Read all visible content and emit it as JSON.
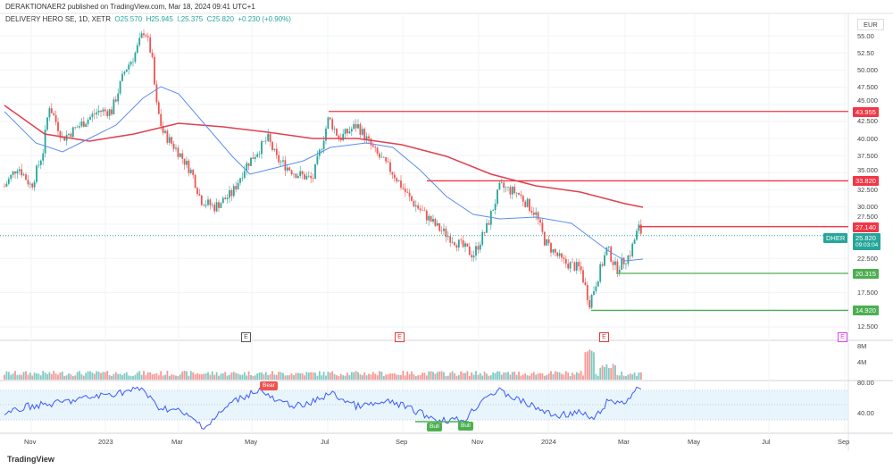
{
  "publisher_line": "DERAKTIONAER2 published on TradingView.com, Mar 18, 2024 09:41 UTC+1",
  "symbol": {
    "name": "DELIVERY HERO SE, 1D, XETR",
    "open": "O25.570",
    "high": "H25.945",
    "low": "L25.375",
    "close": "C25.820",
    "change": "+0.230 (+0.90%)",
    "ticker": "DHER",
    "price": "25.820",
    "countdown": "09:03:04"
  },
  "currency": "EUR",
  "price_ticks": [
    "55.00",
    "52.50",
    "50.000",
    "47.500",
    "45.000",
    "42.500",
    "40.000",
    "37.500",
    "35.000",
    "32.500",
    "30.000",
    "27.500",
    "22.500",
    "17.500",
    "12.500"
  ],
  "levels": [
    {
      "value": "43.955",
      "color": "#f23645"
    },
    {
      "value": "33.820",
      "color": "#f23645"
    },
    {
      "value": "27.140",
      "color": "#f23645"
    },
    {
      "value": "20.315",
      "color": "#4caf50"
    },
    {
      "value": "14.920",
      "color": "#4caf50"
    }
  ],
  "volume_ticks": [
    "8M",
    "4M"
  ],
  "rsi_ticks": [
    "80.00",
    "40.00"
  ],
  "time_ticks": [
    "Nov",
    "2023",
    "Mar",
    "May",
    "Jul",
    "Sep",
    "Nov",
    "2024",
    "Mar",
    "May",
    "Jul",
    "Sep"
  ],
  "earnings_marker": "E",
  "signals": {
    "bear": "Bear",
    "bull": "Bull"
  },
  "colors": {
    "up": "#26a69a",
    "down": "#ef5350",
    "ma_long": "#e04050",
    "ma_short": "#5b8def",
    "rsi": "#3d5afe"
  },
  "logo": "TradingView"
}
